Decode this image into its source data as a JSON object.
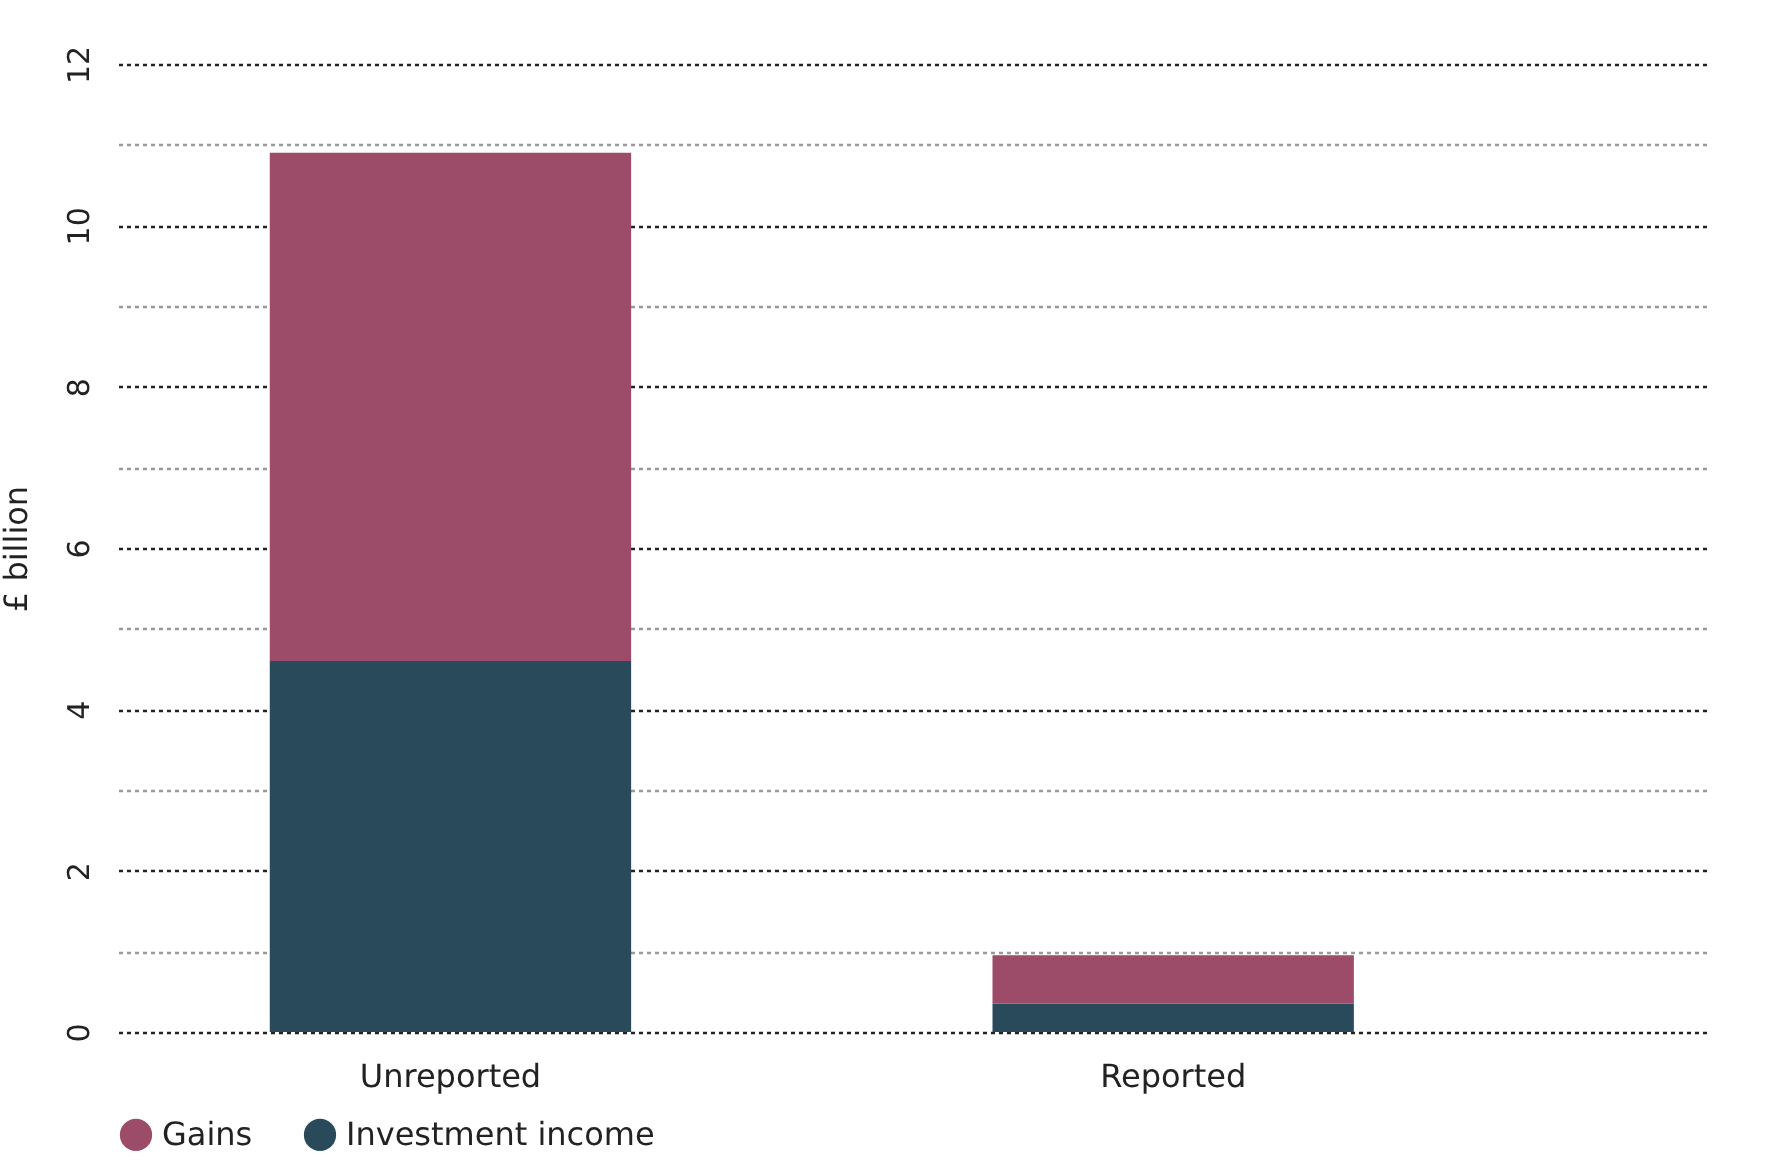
{
  "chart_data": {
    "type": "bar",
    "ylabel": "£ billion",
    "categories": [
      "Unreported",
      "Reported"
    ],
    "stacked": true,
    "series": [
      {
        "name": "Investment income",
        "color": "#294a5a",
        "values": [
          4.6,
          0.35
        ]
      },
      {
        "name": "Gains",
        "color": "#9c4b69",
        "values": [
          6.3,
          0.6
        ]
      }
    ],
    "ylim": [
      0,
      12
    ],
    "yticks": [
      0,
      {
        "value": 1,
        "label": null
      },
      2,
      {
        "value": 3,
        "label": null
      },
      4,
      {
        "value": 5,
        "label": null
      },
      6,
      {
        "value": 7,
        "label": null
      },
      8,
      {
        "value": 9,
        "label": null
      },
      10,
      {
        "value": 11,
        "label": null
      },
      12
    ],
    "grid": true,
    "legend": "bottom"
  }
}
